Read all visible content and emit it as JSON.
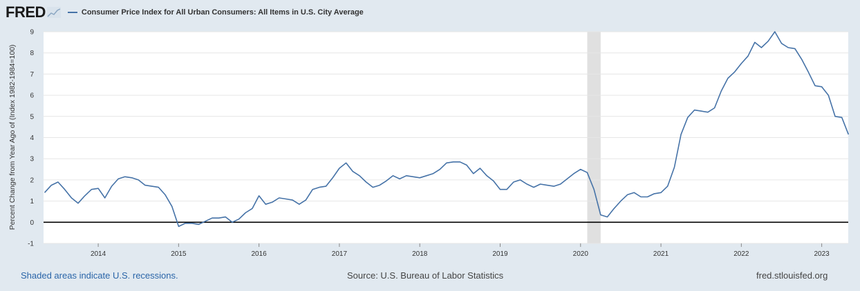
{
  "header": {
    "logo_text": "FRED",
    "series_title": "Consumer Price Index for All Urban Consumers: All Items in U.S. City Average"
  },
  "footer": {
    "recession_note": "Shaded areas indicate U.S. recessions.",
    "source": "Source: U.S. Bureau of Labor Statistics",
    "site": "fred.stlouisfed.org"
  },
  "colors": {
    "series": "#4572a7",
    "background": "#e1e9f0",
    "plot": "#ffffff",
    "recession": "#e0e0e0"
  },
  "chart_data": {
    "type": "line",
    "title": "Consumer Price Index for All Urban Consumers: All Items in U.S. City Average",
    "xlabel": "",
    "ylabel": "Percent Change from Year Ago of (Index 1982-1984=100)",
    "ylim": [
      -1,
      9
    ],
    "xlim": [
      2013.32,
      2023.33
    ],
    "yticks": [
      -1,
      0,
      1,
      2,
      3,
      4,
      5,
      6,
      7,
      8,
      9
    ],
    "xticks": [
      2014,
      2015,
      2016,
      2017,
      2018,
      2019,
      2020,
      2021,
      2022,
      2023
    ],
    "recessions": [
      [
        2020.083,
        2020.25
      ]
    ],
    "series": [
      {
        "name": "Consumer Price Index for All Urban Consumers: All Items in U.S. City Average",
        "x": [
          2013.333,
          2013.417,
          2013.5,
          2013.583,
          2013.667,
          2013.75,
          2013.833,
          2013.917,
          2014.0,
          2014.083,
          2014.167,
          2014.25,
          2014.333,
          2014.417,
          2014.5,
          2014.583,
          2014.667,
          2014.75,
          2014.833,
          2014.917,
          2015.0,
          2015.083,
          2015.167,
          2015.25,
          2015.333,
          2015.417,
          2015.5,
          2015.583,
          2015.667,
          2015.75,
          2015.833,
          2015.917,
          2016.0,
          2016.083,
          2016.167,
          2016.25,
          2016.333,
          2016.417,
          2016.5,
          2016.583,
          2016.667,
          2016.75,
          2016.833,
          2016.917,
          2017.0,
          2017.083,
          2017.167,
          2017.25,
          2017.333,
          2017.417,
          2017.5,
          2017.583,
          2017.667,
          2017.75,
          2017.833,
          2017.917,
          2018.0,
          2018.083,
          2018.167,
          2018.25,
          2018.333,
          2018.417,
          2018.5,
          2018.583,
          2018.667,
          2018.75,
          2018.833,
          2018.917,
          2019.0,
          2019.083,
          2019.167,
          2019.25,
          2019.333,
          2019.417,
          2019.5,
          2019.583,
          2019.667,
          2019.75,
          2019.833,
          2019.917,
          2020.0,
          2020.083,
          2020.167,
          2020.25,
          2020.333,
          2020.417,
          2020.5,
          2020.583,
          2020.667,
          2020.75,
          2020.833,
          2020.917,
          2021.0,
          2021.083,
          2021.167,
          2021.25,
          2021.333,
          2021.417,
          2021.5,
          2021.583,
          2021.667,
          2021.75,
          2021.833,
          2021.917,
          2022.0,
          2022.083,
          2022.167,
          2022.25,
          2022.333,
          2022.417,
          2022.5,
          2022.583,
          2022.667,
          2022.75,
          2022.833,
          2022.917,
          2023.0,
          2023.083,
          2023.167,
          2023.25,
          2023.333
        ],
        "values": [
          1.4,
          1.75,
          1.9,
          1.55,
          1.15,
          0.9,
          1.25,
          1.55,
          1.6,
          1.15,
          1.7,
          2.05,
          2.15,
          2.1,
          2.0,
          1.75,
          1.7,
          1.65,
          1.3,
          0.75,
          -0.2,
          -0.05,
          -0.05,
          -0.1,
          0.05,
          0.2,
          0.2,
          0.25,
          0.0,
          0.15,
          0.45,
          0.65,
          1.25,
          0.85,
          0.95,
          1.15,
          1.1,
          1.05,
          0.85,
          1.05,
          1.55,
          1.65,
          1.7,
          2.1,
          2.55,
          2.8,
          2.4,
          2.2,
          1.9,
          1.65,
          1.75,
          1.95,
          2.2,
          2.05,
          2.2,
          2.15,
          2.1,
          2.2,
          2.3,
          2.5,
          2.8,
          2.85,
          2.85,
          2.7,
          2.3,
          2.55,
          2.2,
          1.95,
          1.55,
          1.55,
          1.9,
          2.0,
          1.8,
          1.65,
          1.8,
          1.75,
          1.7,
          1.8,
          2.05,
          2.3,
          2.5,
          2.35,
          1.55,
          0.35,
          0.25,
          0.65,
          1.0,
          1.3,
          1.4,
          1.2,
          1.2,
          1.35,
          1.4,
          1.7,
          2.6,
          4.15,
          4.95,
          5.3,
          5.25,
          5.2,
          5.4,
          6.2,
          6.8,
          7.1,
          7.5,
          7.85,
          8.5,
          8.25,
          8.55,
          9.0,
          8.45,
          8.25,
          8.2,
          7.7,
          7.1,
          6.45,
          6.4,
          6.0,
          5.0,
          4.95,
          4.15
        ]
      }
    ]
  }
}
